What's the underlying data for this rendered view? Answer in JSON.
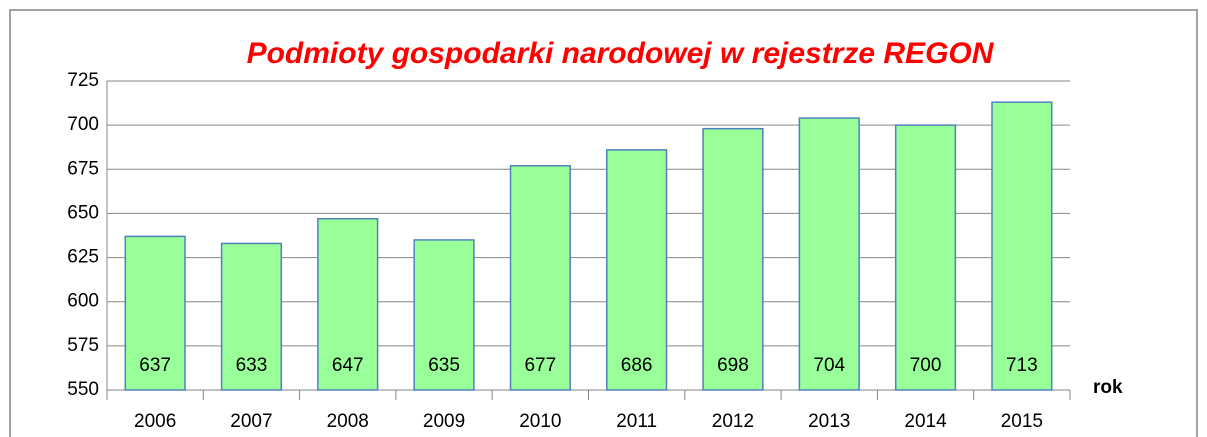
{
  "chart_data": {
    "type": "bar",
    "title": "Podmioty gospodarki narodowej w rejestrze REGON",
    "x_label": "rok",
    "categories": [
      "2006",
      "2007",
      "2008",
      "2009",
      "2010",
      "2011",
      "2012",
      "2013",
      "2014",
      "2015"
    ],
    "values": [
      637,
      633,
      647,
      635,
      677,
      686,
      698,
      704,
      700,
      713
    ],
    "color": "#99ff99",
    "edge_color": "#4f81bd",
    "ylim": [
      550,
      725
    ],
    "yticks": [
      550,
      575,
      600,
      625,
      650,
      675,
      700,
      725
    ],
    "grid": true
  }
}
